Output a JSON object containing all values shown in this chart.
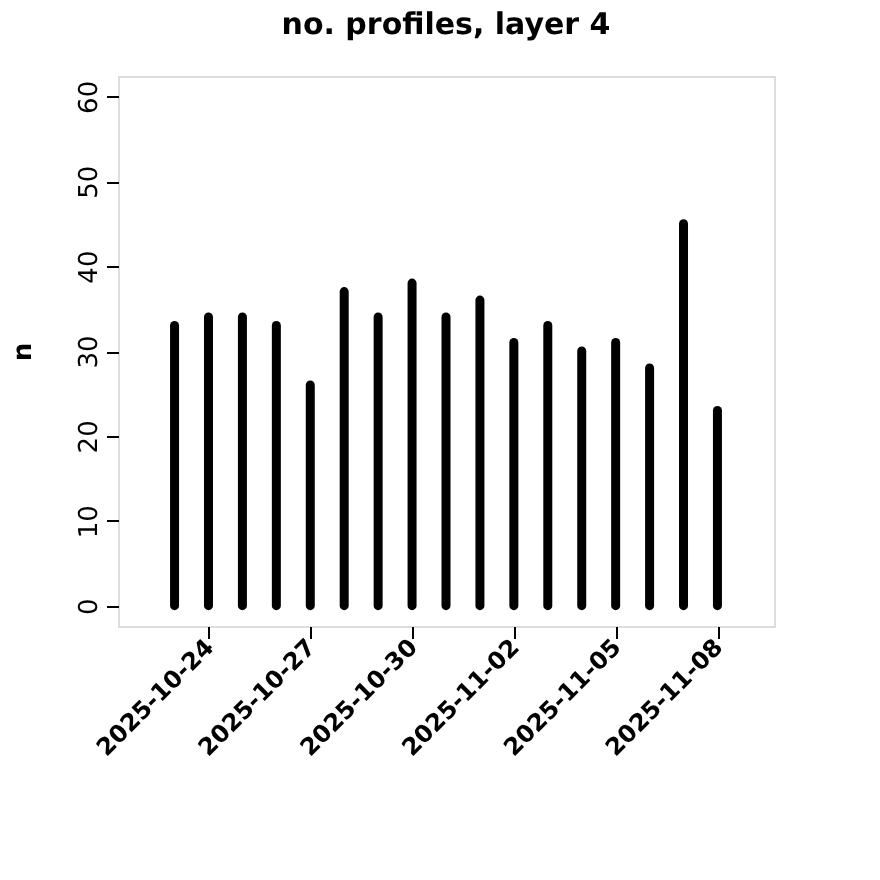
{
  "chart_data": {
    "type": "bar",
    "title": "no. profiles, layer 4",
    "ylabel": "n",
    "x": [
      "2025-10-23",
      "2025-10-24",
      "2025-10-25",
      "2025-10-26",
      "2025-10-27",
      "2025-10-28",
      "2025-10-29",
      "2025-10-30",
      "2025-10-31",
      "2025-11-01",
      "2025-11-02",
      "2025-11-03",
      "2025-11-04",
      "2025-11-05",
      "2025-11-06",
      "2025-11-07",
      "2025-11-08"
    ],
    "values": [
      33,
      34,
      34,
      33,
      26,
      37,
      34,
      38,
      34,
      36,
      31,
      33,
      30,
      31,
      28,
      45,
      23
    ],
    "color": "#000000",
    "xlim": [
      "2025-10-21T08:00",
      "2025-11-09T16:00"
    ],
    "xticks": [
      "2025-10-24",
      "2025-10-27",
      "2025-10-30",
      "2025-11-02",
      "2025-11-05",
      "2025-11-08"
    ],
    "ylim": [
      -2.4,
      62.4
    ],
    "yticks": [
      0,
      10,
      20,
      30,
      40,
      50,
      60
    ],
    "grid": false
  }
}
